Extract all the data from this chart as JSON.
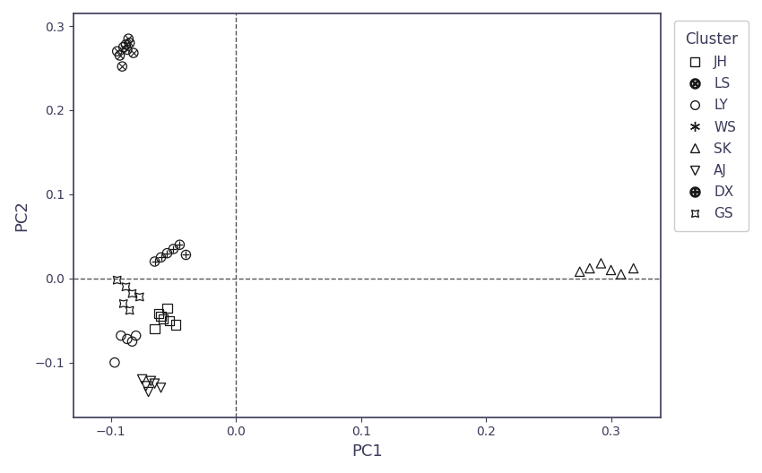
{
  "title": "",
  "xlabel": "PC1",
  "ylabel": "PC2",
  "xlim": [
    -0.13,
    0.34
  ],
  "ylim": [
    -0.165,
    0.315
  ],
  "background_color": "#ffffff",
  "point_data": {
    "JH": {
      "x": [
        -0.055,
        -0.062,
        -0.058,
        -0.053,
        -0.048,
        -0.065,
        -0.06
      ],
      "y": [
        -0.035,
        -0.042,
        -0.048,
        -0.05,
        -0.055,
        -0.06,
        -0.045
      ]
    },
    "LS": {
      "x": [
        -0.095,
        -0.09,
        -0.085,
        -0.087,
        -0.082,
        -0.093,
        -0.088,
        -0.086,
        -0.091
      ],
      "y": [
        0.27,
        0.275,
        0.28,
        0.272,
        0.268,
        0.265,
        0.278,
        0.285,
        0.252
      ]
    },
    "LY": {
      "x": [
        -0.092,
        -0.087,
        -0.083,
        -0.08,
        -0.097
      ],
      "y": [
        -0.068,
        -0.072,
        -0.075,
        -0.068,
        -0.1
      ]
    },
    "WS": {
      "x": [
        -0.09,
        -0.085,
        -0.082,
        -0.078,
        -0.092,
        -0.088,
        -0.08,
        -0.075,
        0.022,
        0.028,
        0.033,
        0.036,
        0.025,
        0.031
      ],
      "y": [
        -0.008,
        -0.015,
        -0.02,
        -0.012,
        -0.025,
        -0.03,
        -0.018,
        -0.022,
        -0.045,
        -0.048,
        -0.05,
        -0.055,
        -0.052,
        -0.046
      ]
    },
    "SK": {
      "x": [
        0.275,
        0.283,
        0.292,
        0.3,
        0.308,
        0.318
      ],
      "y": [
        0.008,
        0.012,
        0.018,
        0.01,
        0.005,
        0.012
      ]
    },
    "AJ": {
      "x": [
        -0.068,
        -0.072,
        -0.065,
        -0.06,
        -0.075,
        -0.07
      ],
      "y": [
        -0.122,
        -0.128,
        -0.125,
        -0.13,
        -0.12,
        -0.135
      ]
    },
    "DX": {
      "x": [
        -0.06,
        -0.055,
        -0.05,
        -0.045,
        -0.04,
        -0.065
      ],
      "y": [
        0.025,
        0.03,
        0.035,
        0.04,
        0.028,
        0.02
      ]
    },
    "GS": {
      "x": [
        -0.095,
        -0.088,
        -0.083,
        -0.077,
        -0.09,
        -0.085
      ],
      "y": [
        -0.002,
        -0.01,
        -0.018,
        -0.022,
        -0.03,
        -0.038
      ]
    }
  },
  "legend_title": "Cluster",
  "legend_labels": [
    "JH",
    "LS",
    "LY",
    "WS",
    "SK",
    "AJ",
    "DX",
    "GS"
  ]
}
